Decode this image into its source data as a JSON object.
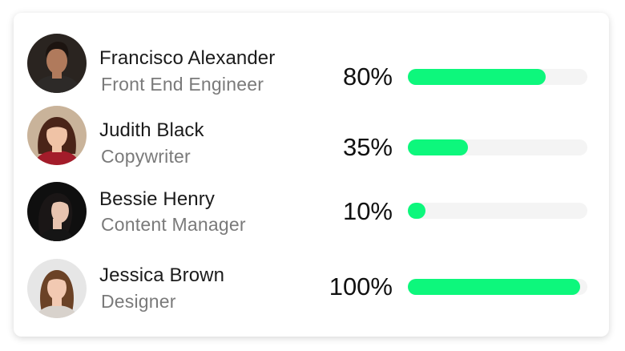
{
  "team": [
    {
      "name": "Francisco Alexander",
      "role": "Front End Engineer",
      "percent_label": "80%",
      "progress": 0.8,
      "avatar_bg": "#2a2420",
      "skin": "#b07a5c",
      "hair": "#1c1410",
      "shirt": "#2d2a28"
    },
    {
      "name": "Judith Black",
      "role": "Copywriter",
      "percent_label": "35%",
      "progress": 0.35,
      "avatar_bg": "#c9b39a",
      "skin": "#f0c3a6",
      "hair": "#4a2418",
      "shirt": "#a31c2a"
    },
    {
      "name": "Bessie Henry",
      "role": "Content Manager",
      "percent_label": "10%",
      "progress": 0.1,
      "avatar_bg": "#0f0f0f",
      "skin": "#e8c4b0",
      "hair": "#1a1616",
      "shirt": "#151515"
    },
    {
      "name": "Jessica Brown",
      "role": "Designer",
      "percent_label": "100%",
      "progress": 1.0,
      "avatar_bg": "#e6e6e6",
      "skin": "#f2c9b2",
      "hair": "#6b4226",
      "shirt": "#d8d2cc"
    }
  ],
  "colors": {
    "bar_fill": "#0df77c",
    "bar_track": "#f4f4f4",
    "name_text": "#1b1b1b",
    "role_text": "#7a7a7a"
  }
}
